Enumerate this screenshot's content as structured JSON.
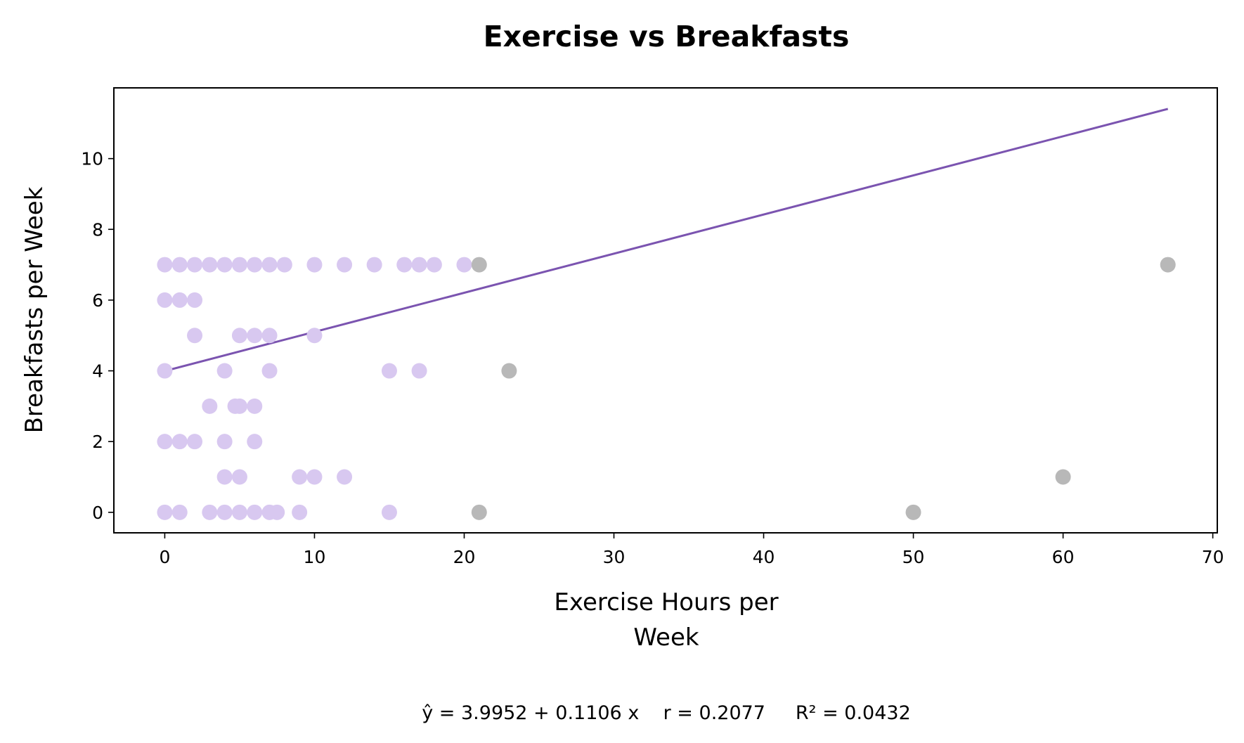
{
  "chart_data": {
    "type": "scatter",
    "title": "Exercise vs Breakfasts",
    "xlabel_lines": [
      "Exercise Hours per",
      "Week"
    ],
    "ylabel": "Breakfasts per Week",
    "xlim": [
      -3.4,
      70.3
    ],
    "ylim": [
      -0.58,
      12.0
    ],
    "xticks": [
      0,
      10,
      20,
      30,
      40,
      50,
      60,
      70
    ],
    "yticks": [
      0,
      2,
      4,
      6,
      8,
      10
    ],
    "colors": {
      "points": "#d8c8f0",
      "outliers": "#b8b8b8",
      "fit_line": "#7b54b0"
    },
    "series": [
      {
        "role": "points",
        "points": [
          [
            0,
            7
          ],
          [
            1,
            7
          ],
          [
            2,
            7
          ],
          [
            3,
            7
          ],
          [
            4,
            7
          ],
          [
            5,
            7
          ],
          [
            6,
            7
          ],
          [
            7,
            7
          ],
          [
            8,
            7
          ],
          [
            10,
            7
          ],
          [
            12,
            7
          ],
          [
            14,
            7
          ],
          [
            16,
            7
          ],
          [
            17,
            7
          ],
          [
            18,
            7
          ],
          [
            20,
            7
          ],
          [
            0,
            6
          ],
          [
            1,
            6
          ],
          [
            2,
            6
          ],
          [
            2,
            5
          ],
          [
            5,
            5
          ],
          [
            6,
            5
          ],
          [
            7,
            5
          ],
          [
            10,
            5
          ],
          [
            0,
            4
          ],
          [
            4,
            4
          ],
          [
            7,
            4
          ],
          [
            15,
            4
          ],
          [
            17,
            4
          ],
          [
            3,
            3
          ],
          [
            4.7,
            3
          ],
          [
            5,
            3
          ],
          [
            6,
            3
          ],
          [
            0,
            2
          ],
          [
            1,
            2
          ],
          [
            2,
            2
          ],
          [
            4,
            2
          ],
          [
            6,
            2
          ],
          [
            4,
            1
          ],
          [
            5,
            1
          ],
          [
            9,
            1
          ],
          [
            10,
            1
          ],
          [
            12,
            1
          ],
          [
            0,
            0
          ],
          [
            1,
            0
          ],
          [
            3,
            0
          ],
          [
            4,
            0
          ],
          [
            5,
            0
          ],
          [
            6,
            0
          ],
          [
            7,
            0
          ],
          [
            7.5,
            0
          ],
          [
            9,
            0
          ],
          [
            15,
            0
          ]
        ]
      },
      {
        "role": "outliers",
        "points": [
          [
            21,
            7
          ],
          [
            67,
            7
          ],
          [
            23,
            4
          ],
          [
            60,
            1
          ],
          [
            21,
            0
          ],
          [
            50,
            0
          ]
        ]
      }
    ],
    "fit": {
      "intercept": 3.9952,
      "slope": 0.1106,
      "x_range": [
        0,
        67
      ]
    },
    "annotation": "ŷ = 3.9952 + 0.1106 x    r = 0.2077     R² = 0.0432"
  }
}
